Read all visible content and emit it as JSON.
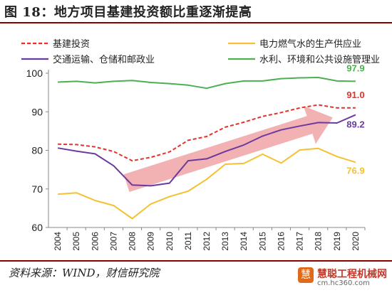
{
  "header": {
    "title": "图 18：地方项目基建投资额比重逐渐提高"
  },
  "footer": {
    "source": "资料来源：WIND，财信研究院"
  },
  "watermark": {
    "main": "慧聪工程机械网",
    "sub": "cm.hc360.com",
    "logo": "慧"
  },
  "colors": {
    "rule": "#8b0000",
    "arrow": "#f0a3a6"
  },
  "chart_data": {
    "type": "line",
    "x": [
      "2004",
      "2005",
      "2006",
      "2007",
      "2008",
      "2009",
      "2010",
      "2011",
      "2012",
      "2013",
      "2014",
      "2015",
      "2016",
      "2017",
      "2018",
      "2019",
      "2020"
    ],
    "ylim": [
      60,
      100
    ],
    "yticks": [
      60,
      70,
      80,
      90,
      100
    ],
    "grid": false,
    "legend_position": "top",
    "series": [
      {
        "name": "基建投资",
        "color": "#e8312a",
        "dash": true,
        "values": [
          81.6,
          81.5,
          80.9,
          79.7,
          77.3,
          78.2,
          79.6,
          82.6,
          83.6,
          86.0,
          87.3,
          88.8,
          89.8,
          91.0,
          91.8,
          91.0,
          91.0
        ],
        "end_label": "91.0"
      },
      {
        "name": "电力燃气水的生产供应业",
        "color": "#f5c132",
        "dash": false,
        "values": [
          68.6,
          69.0,
          67.0,
          65.7,
          62.3,
          66.1,
          68.0,
          69.4,
          72.5,
          76.4,
          76.6,
          79.0,
          76.7,
          80.1,
          80.5,
          78.4,
          76.9
        ],
        "end_label": "76.9"
      },
      {
        "name": "交通运输、仓储和邮政业",
        "color": "#6b3a9e",
        "dash": false,
        "values": [
          80.6,
          79.8,
          79.1,
          76.0,
          71.0,
          70.8,
          71.5,
          77.3,
          77.8,
          79.7,
          81.4,
          83.7,
          85.3,
          86.3,
          87.2,
          87.1,
          89.2
        ],
        "end_label": "89.2"
      },
      {
        "name": "水利、环境和公共设施管理业",
        "color": "#4caf50",
        "dash": false,
        "values": [
          97.7,
          97.9,
          97.5,
          97.9,
          98.1,
          97.6,
          97.3,
          96.9,
          96.1,
          97.3,
          98.0,
          98.0,
          98.6,
          98.8,
          98.9,
          98.0,
          97.9
        ],
        "end_label": "97.9"
      }
    ],
    "annotation": "trend arrow from 2008 to 2019"
  }
}
